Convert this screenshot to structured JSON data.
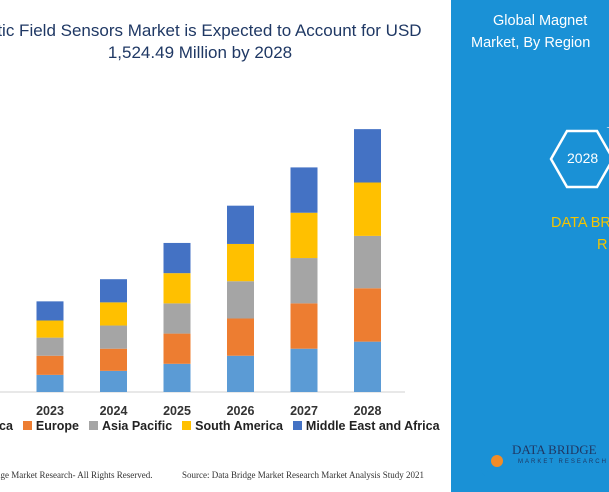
{
  "title": {
    "line1": "netic Field Sensors Market is Expected to Account for USD",
    "line2": "1,524.49 Million by 2028"
  },
  "chart_data": {
    "type": "bar",
    "stacked": true,
    "categories": [
      "2023",
      "2024",
      "2025",
      "2026",
      "2027",
      "2028"
    ],
    "series": [
      {
        "name": "ca",
        "color": "#5b9bd5",
        "values": [
          17,
          21,
          28,
          36,
          43,
          50
        ]
      },
      {
        "name": "Europe",
        "color": "#ed7d31",
        "values": [
          19,
          22,
          30,
          37,
          45,
          53
        ]
      },
      {
        "name": "Asia Pacific",
        "color": "#a5a5a5",
        "values": [
          18,
          23,
          30,
          37,
          45,
          52
        ]
      },
      {
        "name": "South America",
        "color": "#ffc000",
        "values": [
          17,
          23,
          30,
          37,
          45,
          53
        ]
      },
      {
        "name": "Middle East and Africa",
        "color": "#4472c4",
        "values": [
          19,
          23,
          30,
          38,
          45,
          53
        ]
      }
    ],
    "ylim": [
      0,
      280
    ],
    "grid": false,
    "legend_position": "bottom"
  },
  "footer": {
    "left": "dge Market Research- All Rights Reserved.",
    "right": "Source: Data Bridge Market Research Market Analysis Study 2021"
  },
  "sidebar": {
    "title_line1": "Global Magnet",
    "title_line2": "Market, By Region",
    "year": "2028",
    "brand_line1": "DATA BR",
    "brand_line2": "R",
    "bg_color": "#1a91d6",
    "accent_color": "#f5c400"
  },
  "logo": {
    "name": "DATA BRIDGE",
    "tagline": "MARKET RESEARCH"
  }
}
